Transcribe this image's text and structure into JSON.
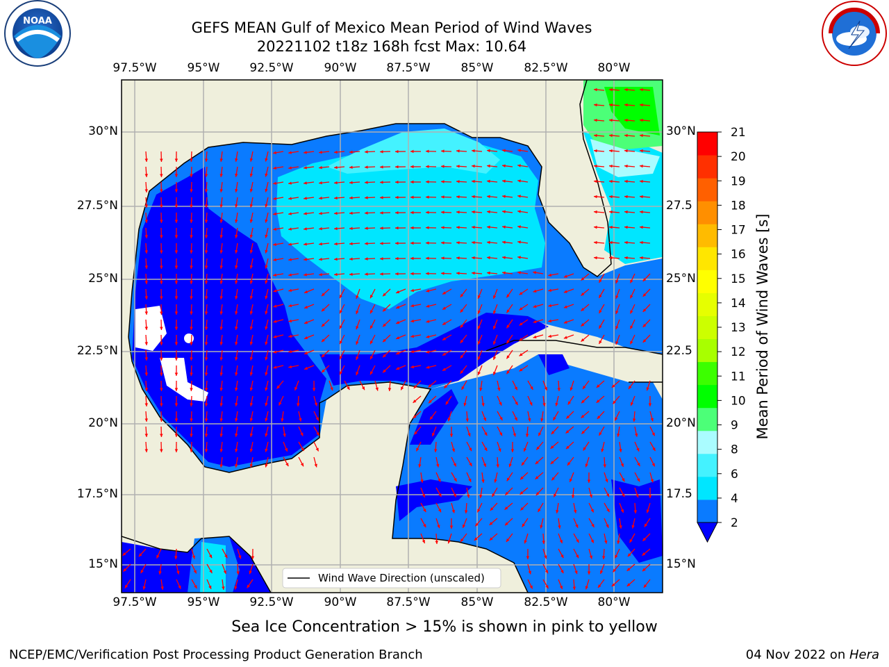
{
  "title_line1": "GEFS MEAN Gulf of Mexico Mean Period of Wind Waves",
  "title_line2": "20221102 t18z 168h fcst   Max: 10.64",
  "lon_ticks": [
    "97.5°W",
    "95°W",
    "92.5°W",
    "90°W",
    "87.5°W",
    "85°W",
    "82.5°W",
    "80°W"
  ],
  "lat_ticks_left": [
    "30°N",
    "27.5°N",
    "25°N",
    "22.5°N",
    "20°N",
    "17.5°N",
    "15°N"
  ],
  "lat_ticks_right": [
    "30°N",
    "27.5",
    "25°N",
    "22.5",
    "20°N",
    "17.5",
    "15°N"
  ],
  "colorbar": {
    "label": "Mean Period of Wind Waves [s]",
    "ticks": [
      "21",
      "20",
      "19",
      "18",
      "17",
      "16",
      "15",
      "14",
      "13",
      "12",
      "11",
      "10",
      "9",
      "8",
      "6",
      "4",
      "2"
    ],
    "colors_bottom_to_top": [
      "#0a7bff",
      "#00e6ff",
      "#44f2ff",
      "#aafcff",
      "#4cff78",
      "#00ff00",
      "#3cff00",
      "#a8ff00",
      "#ccff00",
      "#e6ff00",
      "#ffff00",
      "#ffe600",
      "#ffbb00",
      "#ff8f00",
      "#ff6000",
      "#ff3000",
      "#ff0000"
    ],
    "extend_color": "#0000ff"
  },
  "legend_label": "Wind Wave Direction (unscaled)",
  "sea_ice_note": "Sea Ice Concentration > 15% is shown in pink to yellow",
  "footer_left": "NCEP/EMC/Verification Post Processing Product Generation Branch",
  "footer_date": "04 Nov 2022 on ",
  "footer_machine": "Hera",
  "logos": {
    "left": "NOAA",
    "right": "NATIONAL WEATHER SERVICE"
  },
  "colors": {
    "land": "#efefdc",
    "deep_blue": "#0000ff",
    "mid_blue": "#0a7bff",
    "cyan": "#00e6ff",
    "light_cyan": "#44f2ff",
    "green": "#4cff78",
    "arrow": "#ff0000",
    "grid": "#b0b0b0"
  }
}
